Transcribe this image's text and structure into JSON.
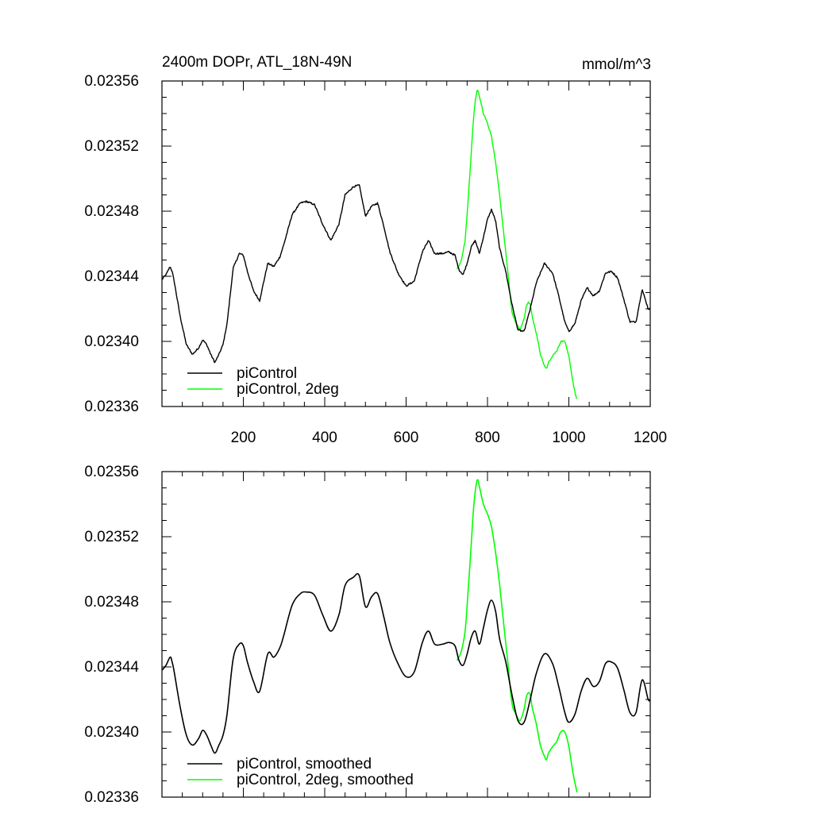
{
  "chart_data": [
    {
      "type": "line",
      "title": "2400m DOPr, ATL_18N-49N",
      "units": "mmol/m^3",
      "xlim": [
        0,
        1200
      ],
      "ylim": [
        0.02336,
        0.02356
      ],
      "x_ticks": [
        200,
        400,
        600,
        800,
        1000,
        1200
      ],
      "x_tick_labels": [
        "200",
        "400",
        "600",
        "800",
        "1000",
        "1200"
      ],
      "y_ticks": [
        0.02336,
        0.0234,
        0.02344,
        0.02348,
        0.02352,
        0.02356
      ],
      "y_tick_labels": [
        "0.02336",
        "0.02340",
        "0.02344",
        "0.02348",
        "0.02352",
        "0.02356"
      ],
      "legend_position": "bottom-left",
      "series": [
        {
          "name": "piControl",
          "color": "#000000",
          "noise": 5e-07,
          "x": [
            0,
            10,
            20,
            25,
            30,
            45,
            60,
            75,
            90,
            100,
            110,
            120,
            130,
            140,
            150,
            160,
            175,
            190,
            200,
            210,
            225,
            240,
            260,
            275,
            290,
            300,
            320,
            340,
            355,
            375,
            395,
            415,
            435,
            450,
            470,
            485,
            500,
            515,
            530,
            545,
            560,
            580,
            600,
            620,
            640,
            655,
            670,
            690,
            705,
            720,
            730,
            740,
            750,
            760,
            770,
            780,
            790,
            800,
            810,
            820,
            830,
            845,
            860,
            875,
            890,
            905,
            920,
            940,
            960,
            975,
            990,
            1000,
            1015,
            1030,
            1045,
            1060,
            1075,
            1090,
            1105,
            1120,
            1135,
            1150,
            1165,
            1180,
            1195,
            1200
          ],
          "y": [
            0.023438,
            0.023441,
            0.023446,
            0.023443,
            0.023437,
            0.023415,
            0.023398,
            0.023392,
            0.023396,
            0.023401,
            0.023398,
            0.023392,
            0.023387,
            0.023392,
            0.023398,
            0.023411,
            0.023445,
            0.023454,
            0.023453,
            0.023443,
            0.023431,
            0.023425,
            0.023448,
            0.023446,
            0.023452,
            0.02346,
            0.023478,
            0.023485,
            0.023486,
            0.023484,
            0.023472,
            0.023462,
            0.023472,
            0.02349,
            0.023495,
            0.023496,
            0.023477,
            0.023483,
            0.023485,
            0.023471,
            0.023455,
            0.023442,
            0.023434,
            0.023437,
            0.023455,
            0.023462,
            0.023454,
            0.023454,
            0.023455,
            0.023453,
            0.023444,
            0.023441,
            0.023448,
            0.023458,
            0.023462,
            0.023454,
            0.023464,
            0.023475,
            0.023481,
            0.023474,
            0.023457,
            0.023443,
            0.023423,
            0.023407,
            0.023406,
            0.02342,
            0.023436,
            0.023448,
            0.023442,
            0.023428,
            0.023412,
            0.023406,
            0.023411,
            0.023425,
            0.023433,
            0.023428,
            0.023431,
            0.023442,
            0.023443,
            0.023439,
            0.023426,
            0.023412,
            0.023412,
            0.023432,
            0.02342,
            0.02342
          ]
        },
        {
          "name": "piControl, 2deg",
          "color": "#00ff00",
          "noise": 5e-07,
          "x": [
            725,
            735,
            745,
            752,
            760,
            765,
            770,
            775,
            780,
            790,
            800,
            810,
            820,
            830,
            840,
            850,
            860,
            870,
            880,
            890,
            895,
            900,
            905,
            910,
            920,
            930,
            940,
            945,
            950,
            960,
            970,
            980,
            990,
            1000,
            1010,
            1020
          ],
          "y": [
            0.023444,
            0.023449,
            0.023462,
            0.023485,
            0.023515,
            0.023535,
            0.023548,
            0.023555,
            0.023551,
            0.02354,
            0.023534,
            0.023526,
            0.02351,
            0.02349,
            0.023466,
            0.023443,
            0.023418,
            0.023411,
            0.023407,
            0.023414,
            0.023421,
            0.023424,
            0.023423,
            0.023415,
            0.023405,
            0.023392,
            0.023385,
            0.023383,
            0.023387,
            0.023391,
            0.023394,
            0.0234,
            0.0234,
            0.023391,
            0.023375,
            0.023363
          ]
        }
      ]
    },
    {
      "type": "line",
      "title": "",
      "xlim": [
        0,
        1200
      ],
      "ylim": [
        0.02336,
        0.02356
      ],
      "y_ticks": [
        0.02336,
        0.0234,
        0.02344,
        0.02348,
        0.02352,
        0.02356
      ],
      "y_tick_labels": [
        "0.02336",
        "0.02340",
        "0.02344",
        "0.02348",
        "0.02352",
        "0.02356"
      ],
      "legend_position": "bottom-left",
      "series": [
        {
          "name": "piControl, smoothed",
          "color": "#000000",
          "x": [
            0,
            10,
            20,
            25,
            30,
            45,
            60,
            75,
            90,
            100,
            110,
            120,
            130,
            140,
            150,
            160,
            175,
            190,
            200,
            210,
            225,
            240,
            260,
            275,
            290,
            300,
            320,
            340,
            355,
            375,
            395,
            415,
            435,
            450,
            470,
            485,
            500,
            515,
            530,
            545,
            560,
            580,
            600,
            620,
            640,
            655,
            670,
            690,
            705,
            720,
            730,
            740,
            750,
            760,
            770,
            780,
            790,
            800,
            810,
            820,
            830,
            845,
            860,
            875,
            890,
            905,
            920,
            940,
            960,
            975,
            990,
            1000,
            1015,
            1030,
            1045,
            1060,
            1075,
            1090,
            1105,
            1120,
            1135,
            1150,
            1165,
            1180,
            1195,
            1200
          ],
          "y": [
            0.023438,
            0.023441,
            0.023446,
            0.023443,
            0.023437,
            0.023415,
            0.023398,
            0.023392,
            0.023396,
            0.023401,
            0.023398,
            0.023392,
            0.023387,
            0.023392,
            0.023398,
            0.023411,
            0.023445,
            0.023454,
            0.023453,
            0.023443,
            0.023431,
            0.023425,
            0.023448,
            0.023446,
            0.023452,
            0.02346,
            0.023478,
            0.023485,
            0.023486,
            0.023484,
            0.023472,
            0.023462,
            0.023472,
            0.02349,
            0.023495,
            0.023496,
            0.023477,
            0.023483,
            0.023485,
            0.023471,
            0.023455,
            0.023442,
            0.023434,
            0.023437,
            0.023455,
            0.023462,
            0.023454,
            0.023454,
            0.023455,
            0.023453,
            0.023444,
            0.023441,
            0.023448,
            0.023458,
            0.023462,
            0.023454,
            0.023464,
            0.023475,
            0.023481,
            0.023474,
            0.023457,
            0.023443,
            0.023423,
            0.023407,
            0.023406,
            0.02342,
            0.023436,
            0.023448,
            0.023442,
            0.023428,
            0.023412,
            0.023406,
            0.023411,
            0.023425,
            0.023433,
            0.023428,
            0.023431,
            0.023442,
            0.023443,
            0.023439,
            0.023426,
            0.023412,
            0.023412,
            0.023432,
            0.02342,
            0.02342
          ]
        },
        {
          "name": "piControl, 2deg, smoothed",
          "color": "#00ff00",
          "x": [
            725,
            735,
            745,
            752,
            760,
            765,
            770,
            775,
            780,
            790,
            800,
            810,
            820,
            830,
            840,
            850,
            860,
            870,
            880,
            890,
            895,
            900,
            905,
            910,
            920,
            930,
            940,
            945,
            950,
            960,
            970,
            980,
            990,
            1000,
            1010,
            1020
          ],
          "y": [
            0.023444,
            0.023449,
            0.023462,
            0.023485,
            0.023515,
            0.023535,
            0.023548,
            0.023555,
            0.023551,
            0.02354,
            0.023534,
            0.023526,
            0.02351,
            0.02349,
            0.023466,
            0.023443,
            0.023418,
            0.023411,
            0.023407,
            0.023414,
            0.023421,
            0.023424,
            0.023423,
            0.023415,
            0.023405,
            0.023392,
            0.023385,
            0.023383,
            0.023387,
            0.023391,
            0.023394,
            0.0234,
            0.0234,
            0.023391,
            0.023375,
            0.023363
          ]
        }
      ]
    }
  ]
}
